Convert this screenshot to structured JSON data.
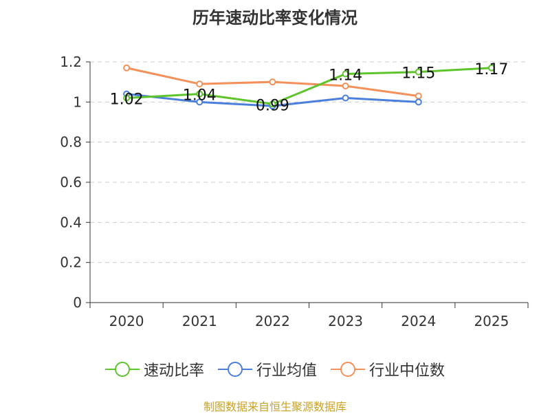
{
  "chart_data": {
    "type": "line",
    "title": "历年速动比率变化情况",
    "categories": [
      "2020",
      "2021",
      "2022",
      "2023",
      "2024",
      "2025"
    ],
    "ylim": [
      0,
      1.2
    ],
    "yticks": [
      "0",
      "0.2",
      "0.4",
      "0.6",
      "0.8",
      "1",
      "1.2"
    ],
    "ytick_values": [
      0,
      0.2,
      0.4,
      0.6,
      0.8,
      1.0,
      1.2
    ],
    "grid": true,
    "legend_position": "bottom",
    "series": [
      {
        "name": "速动比率",
        "color": "#5ec42b",
        "values": [
          1.02,
          1.04,
          0.99,
          1.14,
          1.15,
          1.17
        ],
        "labels": [
          "1.02",
          "1.04",
          "0.99",
          "1.14",
          "1.15",
          "1.17"
        ]
      },
      {
        "name": "行业均值",
        "color": "#4a7fdb",
        "values": [
          1.04,
          1.0,
          0.98,
          1.02,
          1.0,
          null
        ]
      },
      {
        "name": "行业中位数",
        "color": "#f4905a",
        "values": [
          1.17,
          1.09,
          1.1,
          1.08,
          1.03,
          null
        ]
      }
    ]
  },
  "footer": {
    "source": "制图数据来自恒生聚源数据库"
  }
}
